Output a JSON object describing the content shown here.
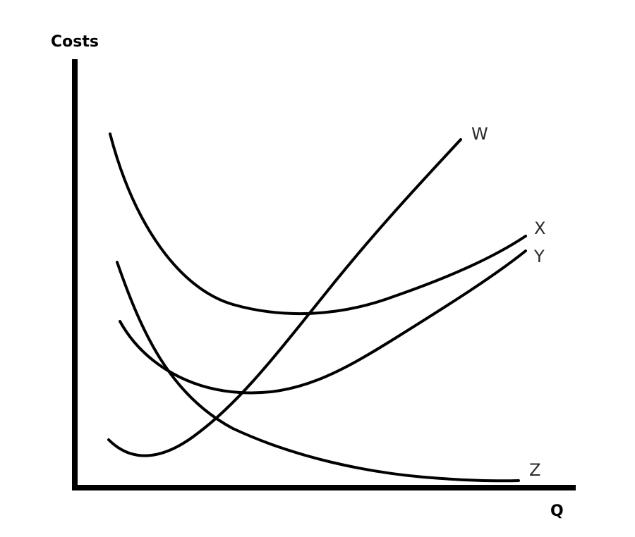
{
  "chart_data": {
    "type": "line",
    "xlabel": "Q",
    "ylabel": "Costs",
    "grid": false,
    "legend": "none",
    "series": [
      {
        "name": "W",
        "color": "#000000"
      },
      {
        "name": "X",
        "color": "#000000"
      },
      {
        "name": "Y",
        "color": "#000000"
      },
      {
        "name": "Z",
        "color": "#000000"
      }
    ]
  }
}
